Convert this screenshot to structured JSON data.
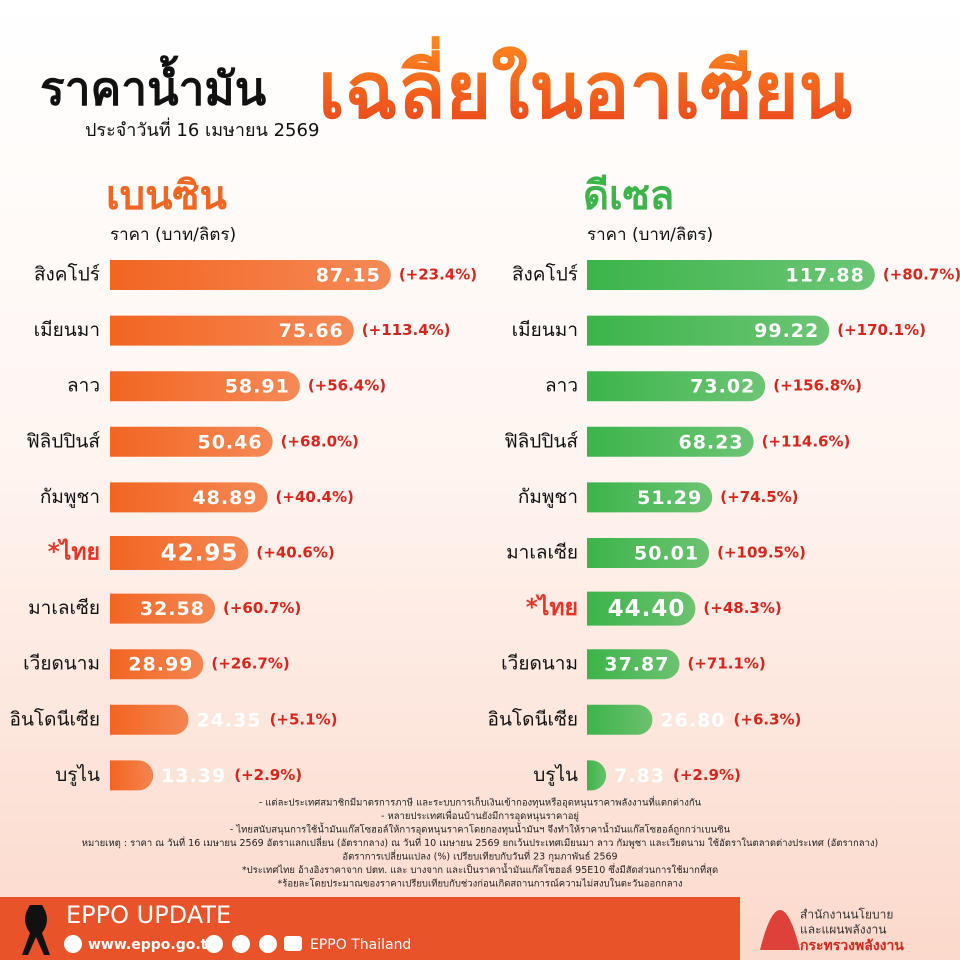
{
  "header": {
    "title": "ราคาน้ำมัน",
    "title_highlight": "เฉลี่ยในอาเซียน",
    "subtitle": "ประจำวันที่ 16 เมษายน 2569"
  },
  "chart_data": [
    {
      "type": "bar",
      "orientation": "horizontal",
      "title": "เบนซิน",
      "subtitle": "ราคา (บาท/ลิตร)",
      "color": "#f26522",
      "categories": [
        "สิงคโปร์",
        "เมียนมา",
        "ลาว",
        "ฟิลิปปินส์",
        "กัมพูชา",
        "*ไทย",
        "มาเลเซีย",
        "เวียดนาม",
        "อินโดนีเซีย",
        "บรูไน"
      ],
      "values": [
        87.15,
        75.66,
        58.91,
        50.46,
        48.89,
        42.95,
        32.58,
        28.99,
        24.35,
        13.39
      ],
      "change_labels": [
        "(+23.4%)",
        "(+113.4%)",
        "(+56.4%)",
        "(+68.0%)",
        "(+40.4%)",
        "(+40.6%)",
        "(+60.7%)",
        "(+26.7%)",
        "(+5.1%)",
        "(+2.9%)"
      ],
      "xlim": [
        0,
        90
      ]
    },
    {
      "type": "bar",
      "orientation": "horizontal",
      "title": "ดีเซล",
      "subtitle": "ราคา (บาท/ลิตร)",
      "color": "#3cb44a",
      "categories": [
        "สิงคโปร์",
        "เมียนมา",
        "ลาว",
        "ฟิลิปปินส์",
        "กัมพูชา",
        "มาเลเซีย",
        "*ไทย",
        "เวียดนาม",
        "อินโดนีเซีย",
        "บรูไน"
      ],
      "values": [
        117.88,
        99.22,
        73.02,
        68.23,
        51.29,
        50.01,
        44.4,
        37.87,
        26.8,
        7.83
      ],
      "value_labels": [
        "117.88",
        "99.22",
        "73.02",
        "68.23",
        "51.29",
        "50.01",
        "44.40",
        "37.87",
        "26.80",
        "7.83"
      ],
      "change_labels": [
        "(+80.7%)",
        "(+170.1%)",
        "(+156.8%)",
        "(+114.6%)",
        "(+74.5%)",
        "(+109.5%)",
        "(+48.3%)",
        "(+71.1%)",
        "(+6.3%)",
        "(+2.9%)"
      ],
      "xlim": [
        0,
        120
      ]
    }
  ],
  "notes": [
    "- แต่ละประเทศสมาชิกมีมาตรการภาษี และระบบการเก็บเงินเข้ากองทุนหรืออุดหนุนราคาพลังงานที่แตกต่างกัน",
    "- หลายประเทศเพื่อนบ้านยังมีการอุดหนุนราคาอยู่",
    "- ไทยสนับสนุนการใช้น้ำมันแก๊สโซฮอล์ให้การอุดหนุนราคาโดยกองทุนน้ำมันฯ จึงทำให้ราคาน้ำมันแก๊สโซฮอล์ถูกกว่าเบนซิน",
    "หมายเหตุ : ราคา ณ วันที่ 16 เมษายน 2569 อัตราแลกเปลี่ยน (อัตรากลาง) ณ วันที่ 10 เมษายน 2569 ยกเว้นประเทศเมียนมา ลาว กัมพูชา และเวียดนาม ใช้อัตราในตลาดต่างประเทศ (อัตรากลาง)",
    "อัตราการเปลี่ยนแปลง (%) เปรียบเทียบกับวันที่ 23 กุมภาพันธ์ 2569",
    "*ประเทศไทย อ้างอิงราคาจาก ปตท. และ บางจาก และเป็นราคาน้ำมันแก๊สโซฮอล์ 95E10 ซึ่งมีสัดส่วนการใช้มากที่สุด",
    "*ร้อยละโดยประมาณของราคาเปรียบเทียบกับช่วงก่อนเกิดสถานการณ์ความไม่สงบในตะวันออกกลาง"
  ],
  "footer": {
    "brand": "EPPO UPDATE",
    "website": "www.eppo.go.th",
    "social": "EPPO Thailand",
    "org_line1": "สำนักงานนโยบาย",
    "org_line2": "และแผนพลังงาน",
    "org_line3": "กระทรวงพลังงาน"
  }
}
